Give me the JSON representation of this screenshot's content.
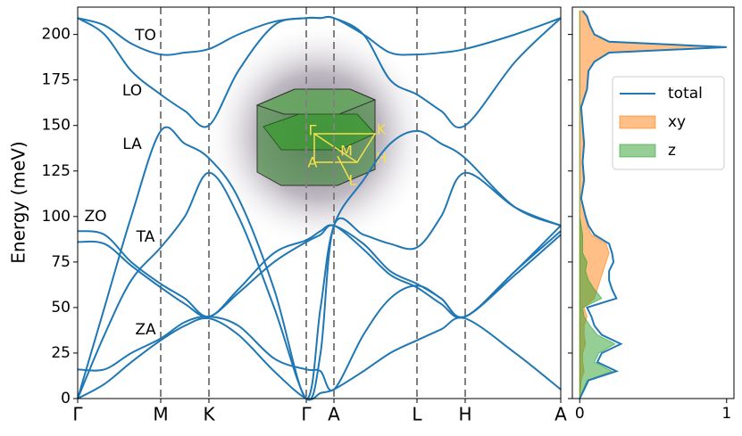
{
  "chart_data": [
    {
      "type": "line",
      "ylabel": "Energy (meV)",
      "x": [
        0,
        0.3,
        0.6,
        0.93,
        1.2,
        1.47,
        1.8,
        2.2,
        2.56,
        2.72,
        2.87,
        3.2,
        3.5,
        3.8,
        4.07,
        4.34,
        4.9,
        5.41
      ],
      "xlim": [
        0,
        5.41
      ],
      "xticks": [
        {
          "value": 0,
          "label": "Γ"
        },
        {
          "value": 0.93,
          "label": "M"
        },
        {
          "value": 1.47,
          "label": "K"
        },
        {
          "value": 2.56,
          "label": "Γ"
        },
        {
          "value": 2.87,
          "label": "A"
        },
        {
          "value": 3.8,
          "label": "L"
        },
        {
          "value": 4.34,
          "label": "H"
        },
        {
          "value": 5.41,
          "label": "A"
        }
      ],
      "ylim": [
        0,
        215
      ],
      "yticks": [
        0,
        25,
        50,
        75,
        100,
        125,
        150,
        175,
        200
      ],
      "annotations": [
        "TO",
        "LO",
        "LA",
        "ZO",
        "TA",
        "ZA"
      ],
      "color": "#1f77b4",
      "grid_x": true,
      "series": [
        {
          "values": [
            0,
            8,
            20,
            32,
            40,
            44,
            35,
            15,
            0,
            3,
            5,
            15,
            25,
            32,
            38,
            44,
            25,
            5
          ]
        },
        {
          "values": [
            16,
            16,
            25,
            33,
            42,
            45,
            40,
            22,
            16,
            15,
            5,
            35,
            55,
            62,
            55,
            45,
            70,
            95
          ]
        },
        {
          "values": [
            0,
            35,
            65,
            83,
            100,
            124,
            100,
            50,
            0,
            25,
            95,
            90,
            85,
            83,
            100,
            124,
            105,
            95
          ]
        },
        {
          "values": [
            0,
            50,
            100,
            147,
            140,
            132,
            110,
            60,
            0,
            50,
            95,
            120,
            140,
            147,
            140,
            132,
            105,
            95
          ]
        },
        {
          "values": [
            92,
            90,
            75,
            63,
            55,
            45,
            60,
            80,
            87,
            92,
            95,
            85,
            70,
            63,
            55,
            45,
            70,
            92
          ]
        },
        {
          "values": [
            86,
            85,
            73,
            61,
            52,
            45,
            58,
            75,
            86,
            90,
            95,
            82,
            68,
            61,
            52,
            45,
            68,
            90
          ]
        },
        {
          "values": [
            209,
            200,
            180,
            167,
            158,
            150,
            180,
            205,
            209,
            209,
            209,
            200,
            175,
            167,
            158,
            150,
            185,
            209
          ]
        },
        {
          "values": [
            209,
            205,
            195,
            189,
            190,
            192,
            200,
            207,
            209,
            209,
            209,
            200,
            190,
            189,
            190,
            192,
            200,
            209
          ]
        }
      ]
    },
    {
      "type": "area",
      "energy": [
        0,
        5,
        10,
        15,
        20,
        25,
        30,
        35,
        40,
        45,
        50,
        55,
        60,
        65,
        70,
        75,
        80,
        85,
        90,
        95,
        100,
        110,
        120,
        130,
        140,
        150,
        160,
        170,
        180,
        185,
        190,
        193,
        196,
        200,
        205,
        210,
        213
      ],
      "xlim": [
        -0.05,
        1.05
      ],
      "xticks": [
        0,
        1
      ],
      "ylim": [
        0,
        215
      ],
      "yticks": [
        0,
        25,
        50,
        75,
        100,
        125,
        150,
        175,
        200
      ],
      "legend": "upper right",
      "series": [
        {
          "name": "total",
          "color": "#1f77b4",
          "style": "line",
          "values": [
            0,
            0.03,
            0.06,
            0.25,
            0.12,
            0.15,
            0.28,
            0.15,
            0.1,
            0.08,
            0.05,
            0.25,
            0.22,
            0.2,
            0.2,
            0.23,
            0.22,
            0.2,
            0.1,
            0.06,
            0.04,
            0.01,
            0.03,
            0.02,
            0.03,
            0.02,
            0.01,
            0.05,
            0.06,
            0.1,
            0.2,
            1.0,
            0.2,
            0.1,
            0.07,
            0.05,
            0.02
          ]
        },
        {
          "name": "xy",
          "color": "#ff7f0e",
          "style": "fill",
          "values": [
            0,
            0.005,
            0.01,
            0.03,
            0.02,
            0.02,
            0.04,
            0.03,
            0.03,
            0.05,
            0.03,
            0.1,
            0.12,
            0.14,
            0.16,
            0.18,
            0.2,
            0.18,
            0.08,
            0.05,
            0.04,
            0.01,
            0.03,
            0.02,
            0.03,
            0.02,
            0.01,
            0.05,
            0.06,
            0.1,
            0.2,
            1.0,
            0.2,
            0.1,
            0.07,
            0.05,
            0.02
          ]
        },
        {
          "name": "z",
          "color": "#2ca02c",
          "style": "fill",
          "values": [
            0,
            0.025,
            0.05,
            0.22,
            0.1,
            0.13,
            0.24,
            0.12,
            0.07,
            0.03,
            0.02,
            0.15,
            0.1,
            0.06,
            0.04,
            0.05,
            0.02,
            0.02,
            0.02,
            0.01,
            0,
            0,
            0,
            0,
            0,
            0,
            0,
            0,
            0,
            0,
            0,
            0,
            0,
            0,
            0,
            0,
            0
          ]
        }
      ]
    }
  ],
  "inset": {
    "labels": [
      "Γ",
      "K",
      "M",
      "H",
      "A",
      "L"
    ]
  }
}
